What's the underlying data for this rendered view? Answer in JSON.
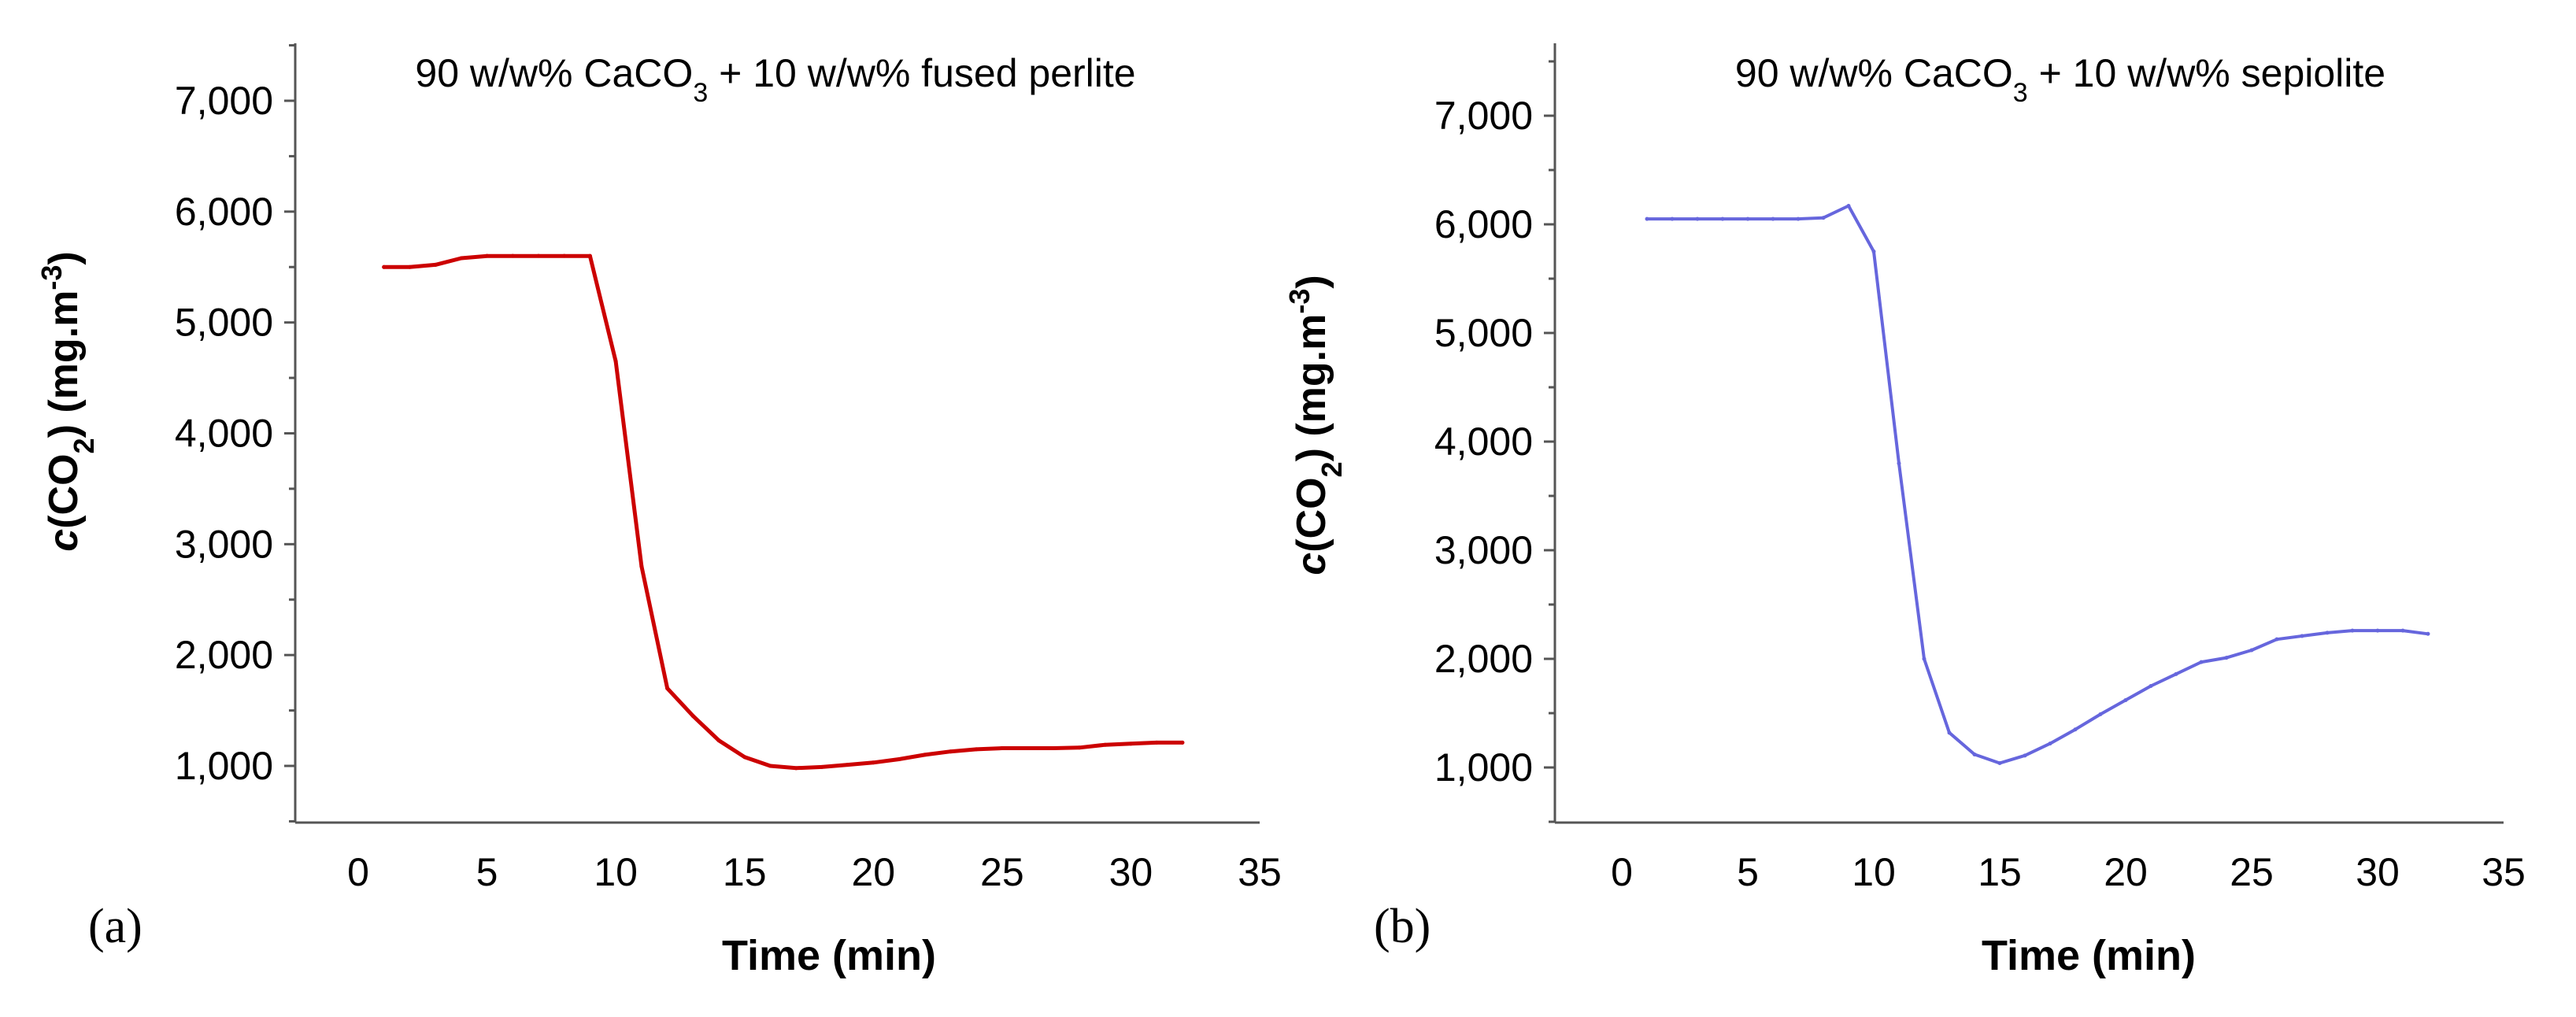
{
  "chart_data": [
    {
      "type": "line",
      "panel_label": "(a)",
      "title": {
        "pre": "90 w/w% CaCO",
        "sub": "3",
        "post": " + 10 w/w% fused perlite"
      },
      "xlabel": "Time (min)",
      "ylabel": {
        "pre": "c",
        "mid": "(CO",
        "sub": "2",
        "post": ") (mg.m",
        "sup": "-3",
        "end": ")"
      },
      "xlim": [
        -2.5,
        35
      ],
      "ylim": [
        500,
        7500
      ],
      "xticks": [
        0,
        5,
        10,
        15,
        20,
        25,
        30,
        35
      ],
      "xtick_labels": [
        "0",
        "5",
        "10",
        "15",
        "20",
        "25",
        "30",
        "35"
      ],
      "yticks": [
        1000,
        2000,
        3000,
        4000,
        5000,
        6000,
        7000
      ],
      "ytick_labels": [
        "1,000",
        "2,000",
        "3,000",
        "4,000",
        "5,000",
        "6,000",
        "7,000"
      ],
      "series": [
        {
          "name": "fused perlite",
          "color": "#cc0000",
          "x": [
            1,
            2,
            3,
            4,
            5,
            6,
            7,
            8,
            9,
            10,
            11,
            12,
            13,
            14,
            15,
            16,
            17,
            18,
            19,
            20,
            21,
            22,
            23,
            24,
            25,
            26,
            27,
            28,
            29,
            30,
            31,
            32
          ],
          "y": [
            5500,
            5500,
            5520,
            5580,
            5600,
            5600,
            5600,
            5600,
            5600,
            4650,
            2800,
            1700,
            1450,
            1230,
            1080,
            1000,
            980,
            990,
            1010,
            1030,
            1060,
            1100,
            1130,
            1150,
            1160,
            1160,
            1160,
            1165,
            1190,
            1200,
            1210,
            1210
          ]
        }
      ]
    },
    {
      "type": "line",
      "panel_label": "(b)",
      "title": {
        "pre": "90 w/w% CaCO",
        "sub": "3",
        "post": " + 10 w/w% sepiolite"
      },
      "xlabel": "Time (min)",
      "ylabel": {
        "pre": "c",
        "mid": "(CO",
        "sub": "2",
        "post": ") (mg.m",
        "sup": "-3",
        "end": ")"
      },
      "xlim": [
        -2.5,
        35
      ],
      "ylim": [
        500,
        7500
      ],
      "xticks": [
        0,
        5,
        10,
        15,
        20,
        25,
        30,
        35
      ],
      "xtick_labels": [
        "0",
        "5",
        "10",
        "15",
        "20",
        "25",
        "30",
        "35"
      ],
      "yticks": [
        1000,
        2000,
        3000,
        4000,
        5000,
        6000,
        7000
      ],
      "ytick_labels": [
        "1,000",
        "2,000",
        "3,000",
        "4,000",
        "5,000",
        "6,000",
        "7,000"
      ],
      "series": [
        {
          "name": "sepiolite",
          "color": "#6666dd",
          "x": [
            1,
            2,
            3,
            4,
            5,
            6,
            7,
            8,
            9,
            10,
            11,
            12,
            13,
            14,
            15,
            16,
            17,
            18,
            19,
            20,
            21,
            22,
            23,
            24,
            25,
            26,
            27,
            28,
            29,
            30,
            31,
            32
          ],
          "y": [
            6050,
            6050,
            6050,
            6050,
            6050,
            6050,
            6050,
            6060,
            6170,
            5750,
            3800,
            2000,
            1320,
            1120,
            1040,
            1110,
            1220,
            1350,
            1490,
            1620,
            1750,
            1860,
            1970,
            2010,
            2080,
            2180,
            2210,
            2240,
            2260,
            2260,
            2260,
            2230
          ]
        }
      ]
    }
  ]
}
